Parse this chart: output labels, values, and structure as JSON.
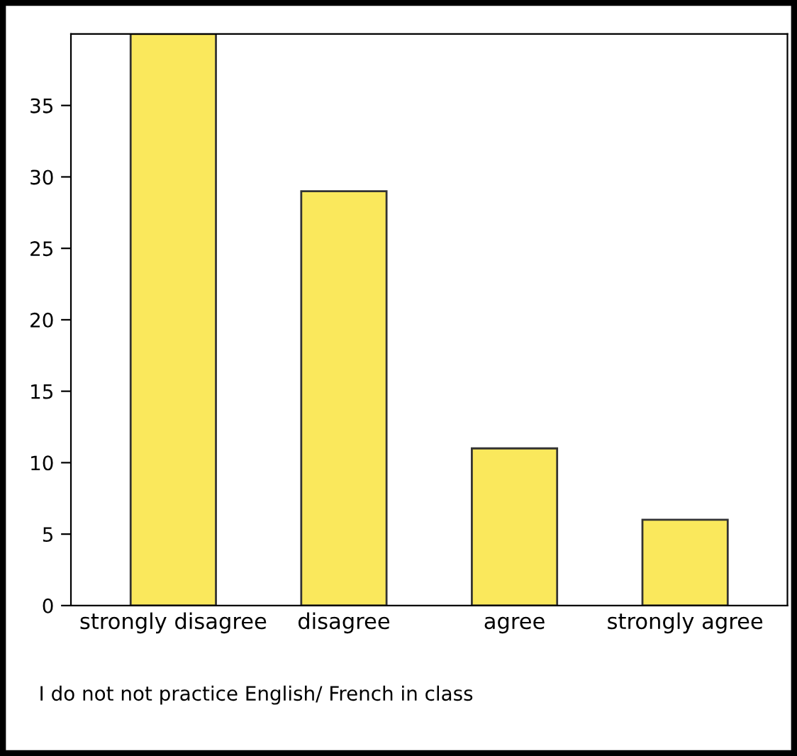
{
  "chart_data": {
    "type": "bar",
    "xlabel": "I do not not practice English/ French in class",
    "categories": [
      "strongly disagree",
      "disagree",
      "agree",
      "strongly agree"
    ],
    "values": [
      40,
      29,
      11,
      6
    ],
    "color": "#fae85c",
    "ylim": [
      0,
      40
    ],
    "yticks": [
      0,
      5,
      10,
      15,
      20,
      25,
      30,
      35
    ],
    "grid": false,
    "legend": false
  }
}
